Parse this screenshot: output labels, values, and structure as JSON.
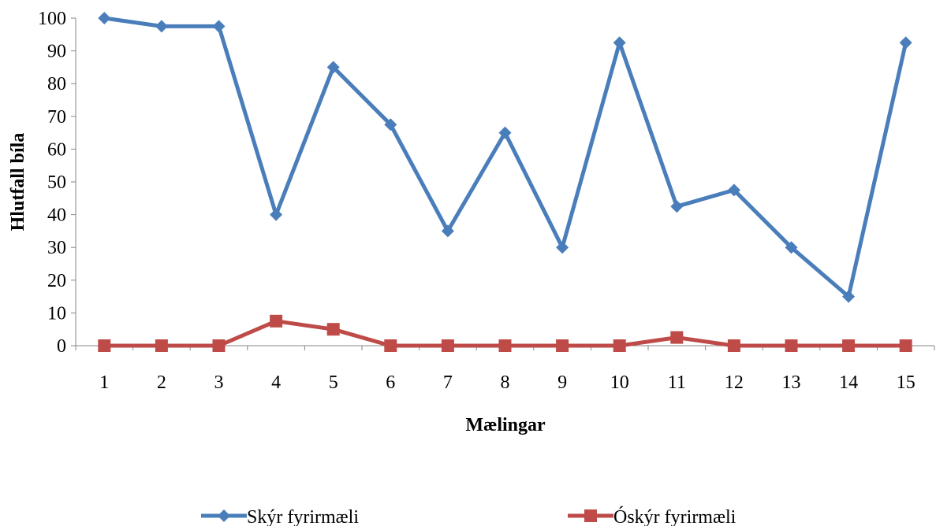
{
  "chart_data": {
    "type": "line",
    "title": "",
    "xlabel": "Mælingar",
    "ylabel": "Hlutfall bíla",
    "categories": [
      "1",
      "2",
      "3",
      "4",
      "5",
      "6",
      "7",
      "8",
      "9",
      "10",
      "11",
      "12",
      "13",
      "14",
      "15"
    ],
    "yticks": [
      "0",
      "10",
      "20",
      "30",
      "40",
      "50",
      "60",
      "70",
      "80",
      "90",
      "100"
    ],
    "ylim": [
      0,
      100
    ],
    "grid": false,
    "legend_position": "bottom",
    "series": [
      {
        "name": "Skýr fyrirmæli",
        "color": "#4A7EBB",
        "marker": "diamond",
        "values": [
          100,
          97.5,
          97.5,
          40,
          85,
          67.5,
          35,
          65,
          30,
          92.5,
          42.5,
          47.5,
          30,
          15,
          92.5
        ]
      },
      {
        "name": "Óskýr fyrirmæli",
        "color": "#BE4B48",
        "marker": "square",
        "values": [
          0,
          0,
          0,
          7.5,
          5,
          0,
          0,
          0,
          0,
          0,
          2.5,
          0,
          0,
          0,
          0
        ]
      }
    ]
  }
}
